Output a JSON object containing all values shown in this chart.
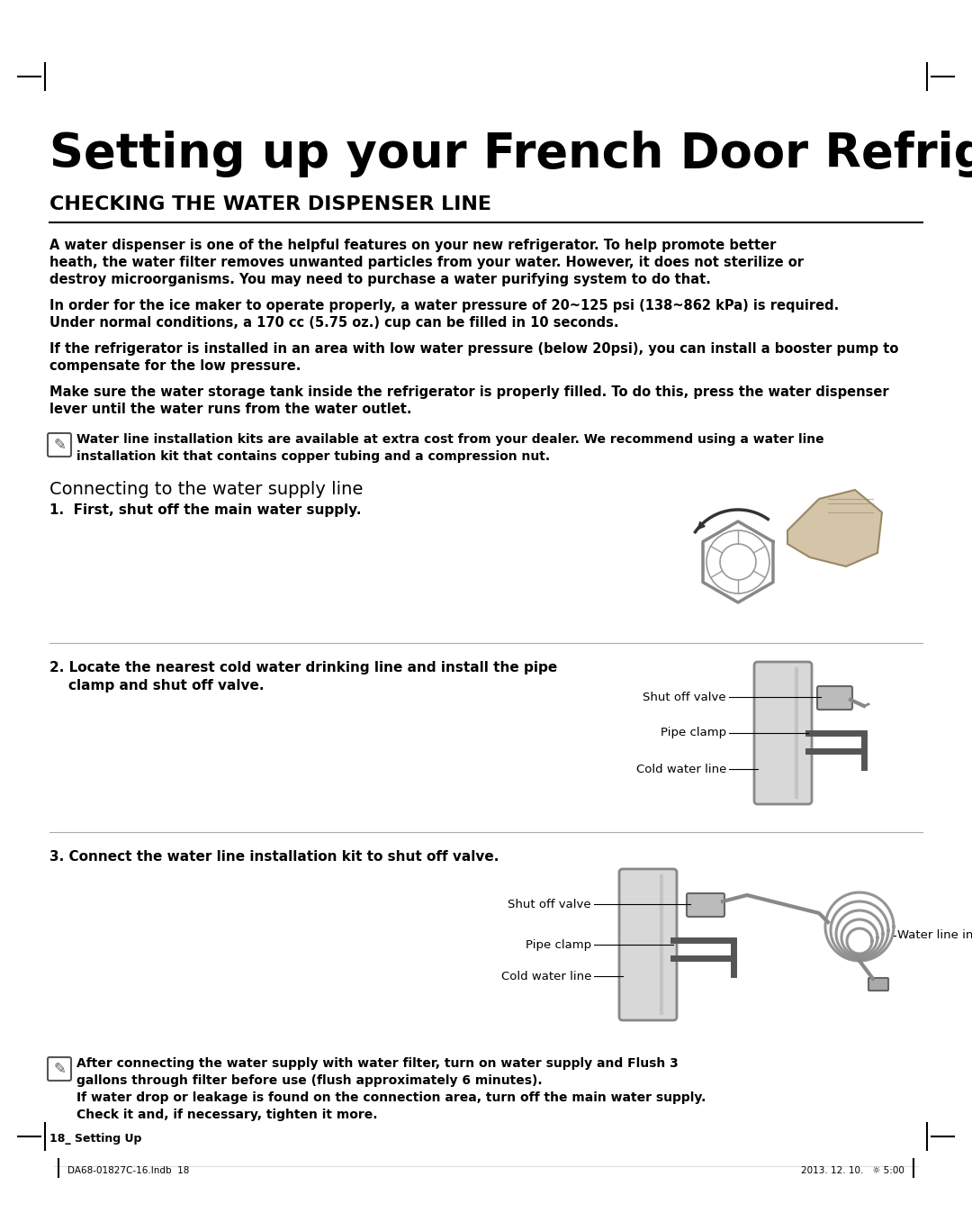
{
  "title": "Setting up your French Door Refrigerator",
  "section_heading": "CHECKING THE WATER DISPENSER LINE",
  "body_paragraphs": [
    "A water dispenser is one of the helpful features on your new refrigerator. To help promote better\nheath, the water filter removes unwanted particles from your water. However, it does not sterilize or\ndestroy microorganisms. You may need to purchase a water purifying system to do that.",
    "In order for the ice maker to operate properly, a water pressure of 20~125 psi (138~862 kPa) is required.\nUnder normal conditions, a 170 cc (5.75 oz.) cup can be filled in 10 seconds.",
    "If the refrigerator is installed in an area with low water pressure (below 20psi), you can install a booster pump to\ncompensate for the low pressure.",
    "Make sure the water storage tank inside the refrigerator is properly filled. To do this, press the water dispenser\nlever until the water runs from the water outlet."
  ],
  "note1": "Water line installation kits are available at extra cost from your dealer. We recommend using a water line\ninstallation kit that contains copper tubing and a compression nut.",
  "section2_heading": "Connecting to the water supply line",
  "step1": "1.  First, shut off the main water supply.",
  "step2_heading": "2. Locate the nearest cold water drinking line and install the pipe\n    clamp and shut off valve.",
  "step2_labels": [
    "Cold water line",
    "Pipe clamp",
    "Shut off valve"
  ],
  "step3_heading": "3. Connect the water line installation kit to shut off valve.",
  "step3_labels": [
    "Cold water line",
    "Pipe clamp",
    "Shut off valve",
    "Water line installation kit"
  ],
  "note2": "After connecting the water supply with water filter, turn on water supply and Flush 3\ngallons through filter before use (flush approximately 6 minutes).\nIf water drop or leakage is found on the connection area, turn off the main water supply.\nCheck it and, if necessary, tighten it more.",
  "footer_left": "DA68-01827C-16.Indb  18",
  "footer_right": "2013. 12. 10.   ☼ 5:00",
  "page_number": "18_ Setting Up",
  "background_color": "#ffffff",
  "text_color": "#000000",
  "heading_color": "#000000",
  "rule_color": "#000000",
  "margin_marks_color": "#000000"
}
